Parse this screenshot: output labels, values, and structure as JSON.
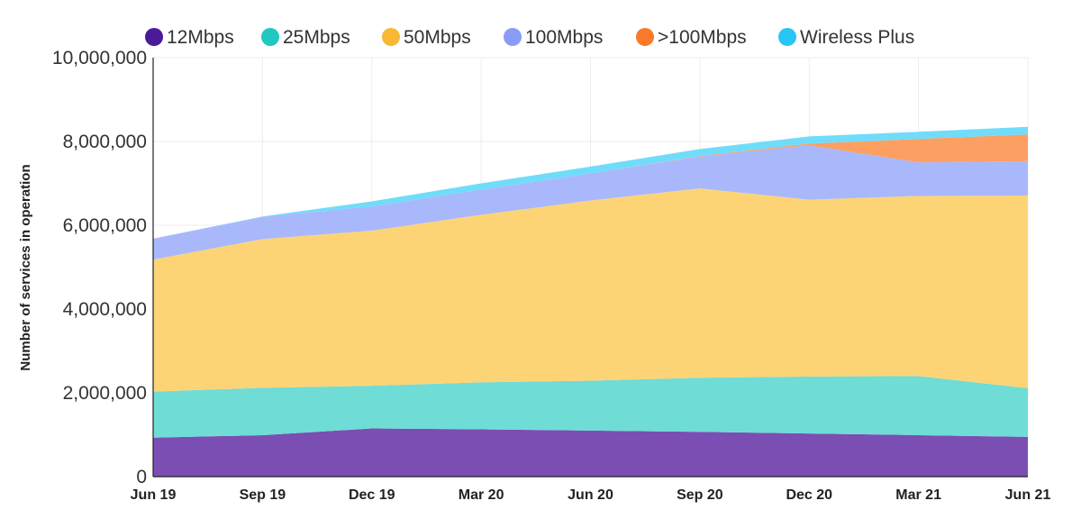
{
  "chart_data": {
    "type": "area",
    "stacked": true,
    "title": "",
    "xlabel": "",
    "ylabel": "Number of services in operation",
    "ylim": [
      0,
      10000000
    ],
    "yticks": [
      0,
      2000000,
      4000000,
      6000000,
      8000000,
      10000000
    ],
    "ytick_labels": [
      "0",
      "2,000,000",
      "4,000,000",
      "6,000,000",
      "8,000,000",
      "10,000,000"
    ],
    "categories": [
      "Jun 19",
      "Sep 19",
      "Dec 19",
      "Mar 20",
      "Jun 20",
      "Sep 20",
      "Dec 20",
      "Mar 21",
      "Jun 21"
    ],
    "grid": true,
    "legend_position": "top",
    "series": [
      {
        "name": "12Mbps",
        "color": "#7b4eb4",
        "legend_color": "#4b1a9a",
        "values": [
          930000,
          990000,
          1150000,
          1130000,
          1100000,
          1070000,
          1030000,
          990000,
          950000
        ]
      },
      {
        "name": "25Mbps",
        "color": "#6fdcd6",
        "legend_color": "#1fc8c0",
        "values": [
          1100000,
          1130000,
          1020000,
          1120000,
          1190000,
          1290000,
          1360000,
          1410000,
          1160000
        ]
      },
      {
        "name": "50Mbps",
        "color": "#fcd476",
        "legend_color": "#f7b833",
        "values": [
          3150000,
          3550000,
          3700000,
          4000000,
          4300000,
          4520000,
          4220000,
          4300000,
          4600000
        ]
      },
      {
        "name": "100Mbps",
        "color": "#a9b8fb",
        "legend_color": "#8a9cf5",
        "values": [
          500000,
          530000,
          580000,
          600000,
          650000,
          760000,
          1300000,
          800000,
          820000
        ]
      },
      {
        "name": ">100Mbps",
        "color": "#fc9f63",
        "legend_color": "#f97b2a",
        "values": [
          0,
          0,
          0,
          0,
          0,
          10000,
          40000,
          560000,
          640000
        ]
      },
      {
        "name": "Wireless Plus",
        "color": "#70dcfa",
        "legend_color": "#27c6f5",
        "values": [
          0,
          10000,
          120000,
          150000,
          160000,
          170000,
          170000,
          170000,
          180000
        ]
      }
    ]
  }
}
